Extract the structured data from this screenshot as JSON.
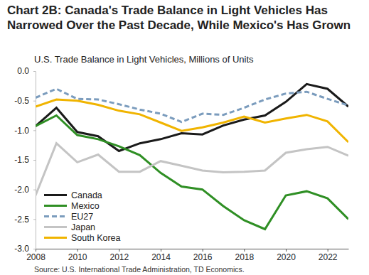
{
  "chart_data": {
    "type": "line",
    "title": "Chart 2B: Canada's Trade Balance in Light Vehicles Has Narrowed Over the Past Decade, While Mexico's Has Grown",
    "subtitle": "U.S. Trade Balance in Light Vehicles, Millions of Units",
    "source": "Source: U.S. International Trade Administration, TD Economics.",
    "x": [
      2008,
      2009,
      2010,
      2011,
      2012,
      2013,
      2014,
      2015,
      2016,
      2017,
      2018,
      2019,
      2020,
      2021,
      2022,
      2023
    ],
    "xlim": [
      2008,
      2023
    ],
    "xticks": [
      2008,
      2010,
      2012,
      2014,
      2016,
      2018,
      2020,
      2022
    ],
    "ylim": [
      -3.0,
      0.0
    ],
    "yticks": [
      {
        "value": 0,
        "label": "0.0"
      },
      -0.5,
      {
        "value": -1,
        "label": "-1.0"
      },
      -1.5,
      {
        "value": -2,
        "label": "-2.0"
      },
      -2.5,
      {
        "value": -3,
        "label": "-3.0"
      }
    ],
    "grid": false,
    "legend": "lower left",
    "series": [
      {
        "name": "Canada",
        "color": "#1a1a1a",
        "line_style": "solid",
        "values": [
          -0.93,
          -0.62,
          -1.03,
          -1.1,
          -1.35,
          -1.22,
          -1.15,
          -1.05,
          -1.07,
          -0.92,
          -0.82,
          -0.75,
          -0.52,
          -0.22,
          -0.3,
          -0.6
        ]
      },
      {
        "name": "Mexico",
        "color": "#2f8f24",
        "line_style": "solid",
        "values": [
          -0.93,
          -0.75,
          -1.08,
          -1.15,
          -1.27,
          -1.42,
          -1.72,
          -1.95,
          -2.0,
          -2.28,
          -2.52,
          -2.67,
          -2.1,
          -2.03,
          -2.15,
          -2.5
        ]
      },
      {
        "name": "EU27",
        "color": "#7b9cbd",
        "line_style": "dashed",
        "values": [
          -0.45,
          -0.3,
          -0.47,
          -0.48,
          -0.56,
          -0.65,
          -0.72,
          -0.86,
          -0.72,
          -0.74,
          -0.62,
          -0.48,
          -0.38,
          -0.35,
          -0.47,
          -0.58
        ]
      },
      {
        "name": "Japan",
        "color": "#c4c4c4",
        "line_style": "solid",
        "values": [
          -2.1,
          -1.22,
          -1.54,
          -1.41,
          -1.7,
          -1.7,
          -1.52,
          -1.6,
          -1.68,
          -1.71,
          -1.7,
          -1.68,
          -1.38,
          -1.32,
          -1.28,
          -1.43
        ]
      },
      {
        "name": "South Korea",
        "color": "#f0b400",
        "line_style": "solid",
        "values": [
          -0.6,
          -0.48,
          -0.5,
          -0.57,
          -0.67,
          -0.73,
          -0.87,
          -1.01,
          -0.95,
          -0.87,
          -0.77,
          -0.87,
          -0.8,
          -0.74,
          -0.85,
          -1.2
        ]
      }
    ]
  }
}
